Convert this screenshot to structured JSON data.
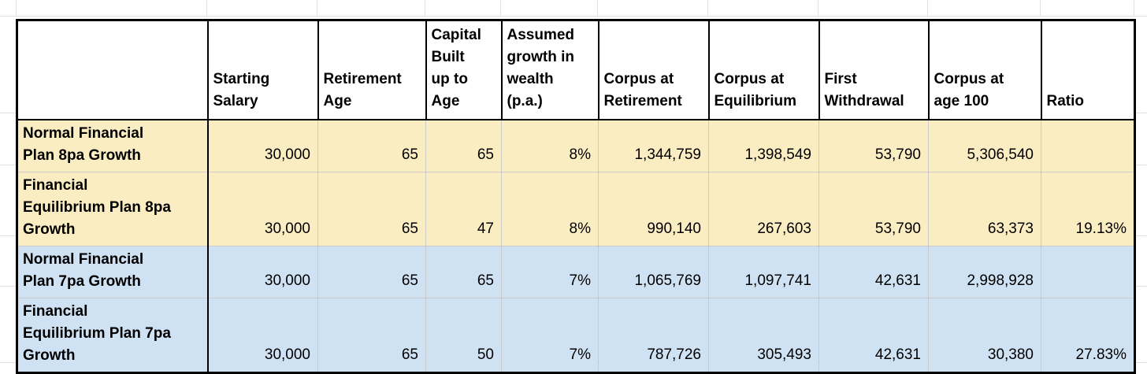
{
  "table": {
    "column_headers": [
      {
        "id": "plan",
        "lines": [
          ""
        ]
      },
      {
        "id": "starting-salary",
        "lines": [
          "Starting",
          "Salary"
        ]
      },
      {
        "id": "retirement-age",
        "lines": [
          "Retirement",
          "Age"
        ]
      },
      {
        "id": "capital-built-up-to-age",
        "lines": [
          "Capital",
          "Built",
          "up to",
          "Age"
        ]
      },
      {
        "id": "assumed-growth",
        "lines": [
          "Assumed",
          "growth in",
          "wealth",
          "(p.a.)"
        ]
      },
      {
        "id": "corpus-at-retirement",
        "lines": [
          "Corpus at",
          "Retirement"
        ]
      },
      {
        "id": "corpus-at-equilibrium",
        "lines": [
          "Corpus at",
          "Equilibrium"
        ]
      },
      {
        "id": "first-withdrawal",
        "lines": [
          "First",
          "Withdrawal"
        ]
      },
      {
        "id": "corpus-at-age-100",
        "lines": [
          "Corpus at",
          "age 100"
        ]
      },
      {
        "id": "ratio",
        "lines": [
          "Ratio"
        ]
      }
    ],
    "rows": [
      {
        "label_lines": [
          "Normal Financial",
          "Plan 8pa Growth"
        ],
        "theme": "yellow",
        "starting_salary": "30,000",
        "retirement_age": "65",
        "capital_built_up_to_age": "65",
        "assumed_growth": "8%",
        "corpus_at_retirement": "1,344,759",
        "corpus_at_equilibrium": "1,398,549",
        "first_withdrawal": "53,790",
        "corpus_at_age_100": "5,306,540",
        "ratio": ""
      },
      {
        "label_lines": [
          "Financial",
          "Equilibrium Plan 8pa",
          "Growth"
        ],
        "theme": "yellow",
        "starting_salary": "30,000",
        "retirement_age": "65",
        "capital_built_up_to_age": "47",
        "assumed_growth": "8%",
        "corpus_at_retirement": "990,140",
        "corpus_at_equilibrium": "267,603",
        "first_withdrawal": "53,790",
        "corpus_at_age_100": "63,373",
        "ratio": "19.13%"
      },
      {
        "label_lines": [
          "Normal Financial",
          "Plan 7pa Growth"
        ],
        "theme": "blue",
        "starting_salary": "30,000",
        "retirement_age": "65",
        "capital_built_up_to_age": "65",
        "assumed_growth": "7%",
        "corpus_at_retirement": "1,065,769",
        "corpus_at_equilibrium": "1,097,741",
        "first_withdrawal": "42,631",
        "corpus_at_age_100": "2,998,928",
        "ratio": ""
      },
      {
        "label_lines": [
          "Financial",
          "Equilibrium Plan 7pa",
          "Growth"
        ],
        "theme": "blue",
        "starting_salary": "30,000",
        "retirement_age": "65",
        "capital_built_up_to_age": "50",
        "assumed_growth": "7%",
        "corpus_at_retirement": "787,726",
        "corpus_at_equilibrium": "305,493",
        "first_withdrawal": "42,631",
        "corpus_at_age_100": "30,380",
        "ratio": "27.83%"
      }
    ]
  },
  "colors": {
    "row_highlight_yellow": "#fbedc2",
    "row_highlight_blue": "#cfe2f3",
    "table_border": "#000000",
    "sheet_gridline": "#e1e1e1",
    "cell_background": "#ffffff",
    "text": "#000000"
  }
}
